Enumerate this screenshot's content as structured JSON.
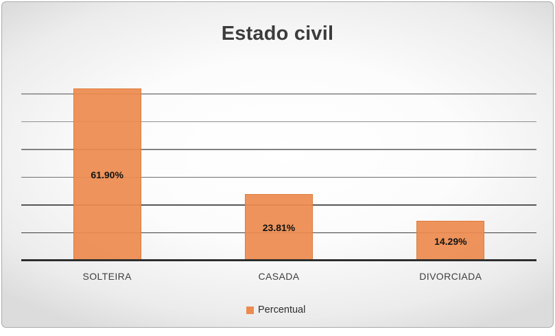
{
  "chart_data": {
    "type": "bar",
    "title": "Estado civil",
    "categories": [
      "SOLTEIRA",
      "CASADA",
      "DIVORCIADA"
    ],
    "series": [
      {
        "name": "Percentual",
        "values": [
          61.9,
          23.81,
          14.29
        ]
      }
    ],
    "value_labels": [
      "61.90%",
      "23.81%",
      "14.29%"
    ],
    "xlabel": "",
    "ylabel": "",
    "ylim": [
      0,
      70
    ],
    "gridline_step": 10,
    "y_tick_labels_visible": false,
    "grid": true,
    "legend": {
      "position": "bottom",
      "entries": [
        {
          "label": "Percentual",
          "swatch_color": "#EC8B4F"
        }
      ]
    },
    "style": {
      "bar_fill": "#EC8B4F",
      "bar_border": "#DB783A",
      "title_color": "#3C3C3C",
      "category_label_color": "#3D3D3D",
      "value_label_color": "#131313",
      "axis_line_color": "#2D2D2D",
      "gridline_colors_bottom_up": [
        "#3C3C3C",
        "#555555",
        "#6F6F6F",
        "#818181",
        "#8F8F8F",
        "#9E9E9E"
      ],
      "background_center": "#FFFFFF",
      "background_edge": "#DCDCDC",
      "chart_border_color": "#A9A9A9"
    }
  }
}
